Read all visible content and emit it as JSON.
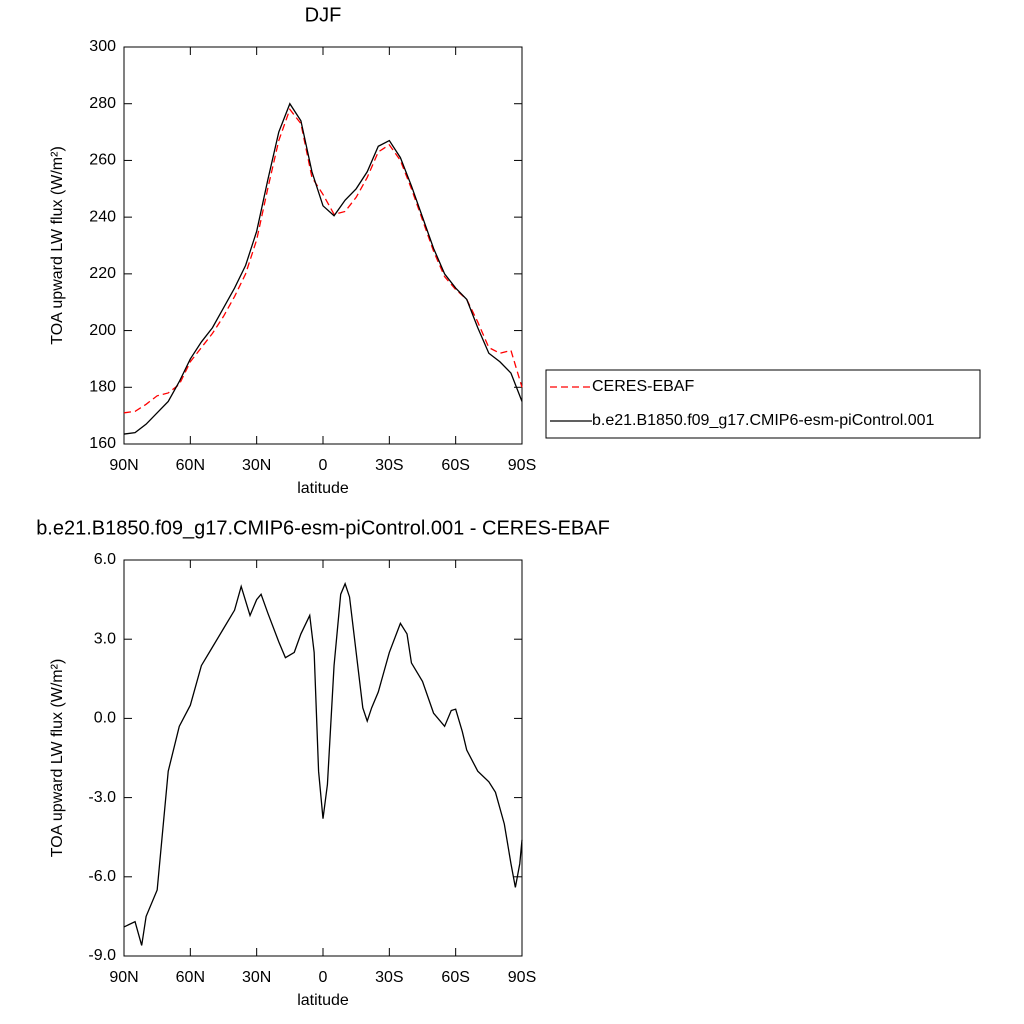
{
  "chart_data": [
    {
      "type": "line",
      "title": "DJF",
      "xlabel": "latitude",
      "ylabel": "TOA upward LW flux (W/m²)",
      "x": [
        90,
        85,
        80,
        75,
        70,
        65,
        60,
        55,
        50,
        45,
        40,
        35,
        30,
        25,
        20,
        15,
        10,
        5,
        0,
        -5,
        -10,
        -15,
        -20,
        -25,
        -30,
        -35,
        -40,
        -45,
        -50,
        -55,
        -60,
        -65,
        -70,
        -75,
        -80,
        -85,
        -90
      ],
      "series": [
        {
          "name": "CERES-EBAF",
          "color": "#ff0000",
          "linestyle": "dashed",
          "values": [
            171,
            171.5,
            174,
            177,
            178,
            181,
            189,
            194,
            199,
            205,
            212,
            220,
            232,
            250,
            267,
            278,
            273,
            254,
            248,
            241,
            242,
            247,
            254,
            263,
            265.5,
            260,
            250,
            239,
            228,
            219,
            214.5,
            211,
            203,
            194,
            192,
            193,
            180
          ]
        },
        {
          "name": "b.e21.B1850.f09_g17.CMIP6-esm-piControl.001",
          "color": "#000000",
          "linestyle": "solid",
          "values": [
            163.5,
            164,
            167,
            171,
            175,
            182,
            190,
            196,
            201,
            208,
            215,
            223,
            235,
            253,
            270,
            280,
            274,
            256,
            244,
            240.5,
            246,
            250,
            256,
            265,
            267,
            261,
            251,
            240,
            229,
            220,
            215,
            211,
            201,
            192,
            189,
            185,
            175
          ]
        }
      ],
      "xlim": [
        90,
        -90
      ],
      "xticks": [
        {
          "value": 90,
          "label": "90N"
        },
        {
          "value": 60,
          "label": "60N"
        },
        {
          "value": 30,
          "label": "30N"
        },
        0,
        {
          "value": -30,
          "label": "30S"
        },
        {
          "value": -60,
          "label": "60S"
        },
        {
          "value": -90,
          "label": "90S"
        }
      ],
      "ylim": [
        160,
        300
      ],
      "yticks": [
        160,
        180,
        200,
        220,
        240,
        260,
        280,
        300
      ],
      "legend": "right"
    },
    {
      "type": "line",
      "title": "b.e21.B1850.f09_g17.CMIP6-esm-piControl.001 - CERES-EBAF",
      "xlabel": "latitude",
      "ylabel": "TOA upward LW flux (W/m²)",
      "x": [
        90,
        85,
        82,
        80,
        75,
        70,
        65,
        60,
        55,
        50,
        45,
        40,
        37,
        33,
        30,
        28,
        25,
        20,
        17,
        13,
        10,
        6,
        4,
        2,
        0,
        -2,
        -5,
        -8,
        -10,
        -12,
        -15,
        -18,
        -20,
        -22,
        -25,
        -30,
        -35,
        -38,
        -40,
        -45,
        -50,
        -55,
        -58,
        -60,
        -63,
        -65,
        -70,
        -75,
        -78,
        -82,
        -85,
        -87,
        -89,
        -90
      ],
      "series": [
        {
          "name": "b.e21.B1850.f09_g17.CMIP6-esm-piControl.001",
          "color": "#000000",
          "linestyle": "solid",
          "values": [
            -7.9,
            -7.7,
            -8.6,
            -7.5,
            -6.5,
            -2,
            -0.3,
            0.5,
            2,
            2.7,
            3.4,
            4.1,
            5.0,
            3.9,
            4.5,
            4.7,
            4.0,
            2.9,
            2.3,
            2.5,
            3.2,
            3.9,
            2.5,
            -2,
            -3.8,
            -2.5,
            2,
            4.7,
            5.1,
            4.6,
            2.5,
            0.4,
            -0.1,
            0.4,
            1.0,
            2.5,
            3.6,
            3.2,
            2.1,
            1.4,
            0.2,
            -0.3,
            0.3,
            0.35,
            -0.5,
            -1.2,
            -2,
            -2.4,
            -2.8,
            -4,
            -5.5,
            -6.4,
            -5.5,
            -4.6
          ]
        }
      ],
      "xlim": [
        90,
        -90
      ],
      "xticks": [
        {
          "value": 90,
          "label": "90N"
        },
        {
          "value": 60,
          "label": "60N"
        },
        {
          "value": 30,
          "label": "30N"
        },
        0,
        {
          "value": -30,
          "label": "30S"
        },
        {
          "value": -60,
          "label": "60S"
        },
        {
          "value": -90,
          "label": "90S"
        }
      ],
      "ylim": [
        -9,
        6
      ],
      "yticks": [
        {
          "value": -9,
          "label": "-9.0"
        },
        {
          "value": -6,
          "label": "-6.0"
        },
        {
          "value": -3,
          "label": "-3.0"
        },
        {
          "value": 0,
          "label": "0.0"
        },
        {
          "value": 3,
          "label": "3.0"
        },
        {
          "value": 6,
          "label": "6.0"
        }
      ]
    }
  ]
}
